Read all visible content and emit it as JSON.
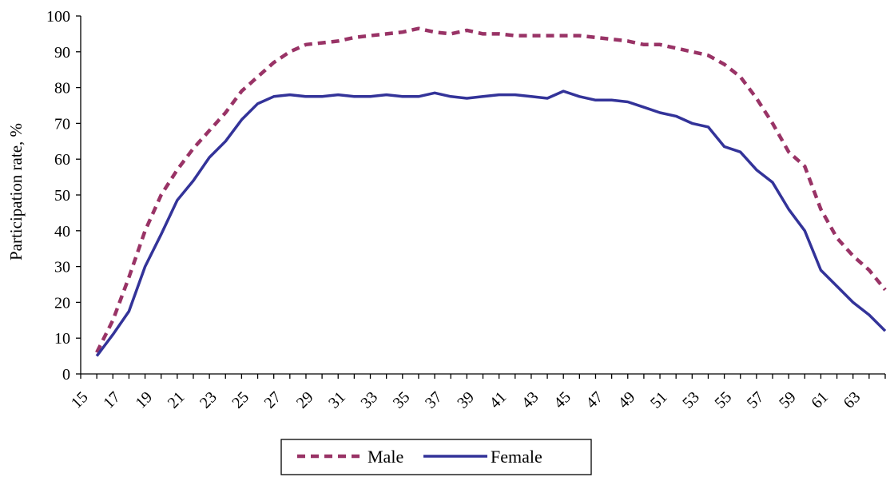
{
  "chart_data": {
    "type": "line",
    "title": "",
    "xlabel": "",
    "ylabel": "Participation rate, %",
    "ylim": [
      0,
      100
    ],
    "yticks": [
      0,
      10,
      20,
      30,
      40,
      50,
      60,
      70,
      80,
      90,
      100
    ],
    "x": [
      16,
      17,
      18,
      19,
      20,
      21,
      22,
      23,
      24,
      25,
      26,
      27,
      28,
      29,
      30,
      31,
      32,
      33,
      34,
      35,
      36,
      37,
      38,
      39,
      40,
      41,
      42,
      43,
      44,
      45,
      46,
      47,
      48,
      49,
      50,
      51,
      52,
      53,
      54,
      55,
      56,
      57,
      58,
      59,
      60,
      61,
      62,
      63,
      64,
      65
    ],
    "xtick_labels": [
      "15",
      "17",
      "19",
      "21",
      "23",
      "25",
      "27",
      "29",
      "31",
      "33",
      "35",
      "37",
      "39",
      "41",
      "43",
      "45",
      "47",
      "49",
      "51",
      "53",
      "55",
      "57",
      "59",
      "61",
      "63"
    ],
    "legend_position": "bottom",
    "grid": false,
    "series": [
      {
        "name": "Male",
        "color": "#993366",
        "dash": "dashed",
        "values": [
          6,
          15,
          27,
          40,
          50,
          57,
          63,
          68,
          73,
          79,
          83,
          87,
          90,
          92,
          92.5,
          93,
          94,
          94.5,
          95,
          95.5,
          96.5,
          95.5,
          95,
          96,
          95,
          95,
          94.5,
          94.5,
          94.5,
          94.5,
          94.5,
          94,
          93.5,
          93,
          92,
          92,
          91,
          90,
          89,
          86.5,
          83,
          77,
          70,
          62,
          58,
          46,
          38,
          33,
          29,
          23.5
        ]
      },
      {
        "name": "Female",
        "color": "#333399",
        "dash": "solid",
        "values": [
          5,
          11,
          17.5,
          30,
          39,
          48.5,
          54,
          60.5,
          65,
          71,
          75.5,
          77.5,
          78,
          77.5,
          77.5,
          78,
          77.5,
          77.5,
          78,
          77.5,
          77.5,
          78.5,
          77.5,
          77,
          77.5,
          78,
          78,
          77.5,
          77,
          79,
          77.5,
          76.5,
          76.5,
          76,
          74.5,
          73,
          72,
          70,
          69,
          63.5,
          62,
          57,
          53.5,
          46,
          40,
          29,
          24.5,
          20,
          16.5,
          12
        ]
      }
    ]
  }
}
